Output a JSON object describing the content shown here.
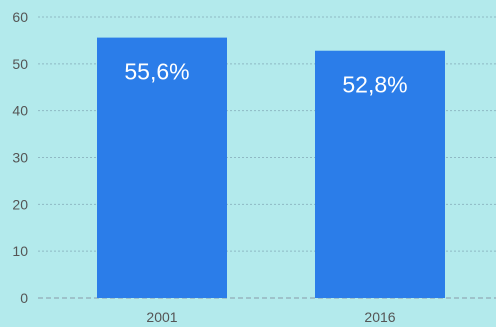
{
  "chart_data": {
    "type": "bar",
    "categories": [
      "2001",
      "2016"
    ],
    "values": [
      55.6,
      52.8
    ],
    "data_labels": [
      "55,6%",
      "52,8%"
    ],
    "title": "",
    "xlabel": "",
    "ylabel": "",
    "ylim": [
      0,
      60
    ],
    "yticks": [
      0,
      10,
      20,
      30,
      40,
      50,
      60
    ],
    "grid": true,
    "legend": "none"
  },
  "colors": {
    "background": "#b3eaec",
    "bar": "#2b7de9",
    "grid": "#8fb9c4",
    "axis": "#8a9aa8",
    "tick_text": "#555555",
    "label_text": "#ffffff"
  }
}
